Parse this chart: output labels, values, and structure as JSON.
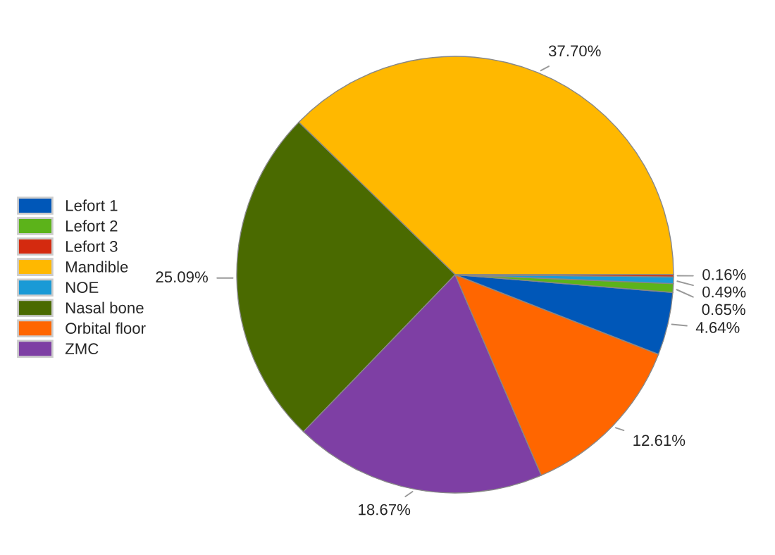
{
  "chart_data": {
    "type": "pie",
    "categories": [
      "Mandible",
      "Nasal bone",
      "ZMC",
      "Orbital floor",
      "Lefort 1",
      "Lefort 2",
      "NOE",
      "Lefort 3"
    ],
    "values": [
      37.7,
      25.09,
      18.67,
      12.61,
      4.64,
      0.65,
      0.49,
      0.16
    ],
    "colors": [
      "#ffb800",
      "#4a6a00",
      "#7e3fa4",
      "#ff6600",
      "#0057b8",
      "#5cb31a",
      "#1a9ad6",
      "#d42a0f"
    ],
    "value_labels": [
      "37.70%",
      "25.09%",
      "18.67%",
      "12.61%",
      "4.64%",
      "0.65%",
      "0.49%",
      "0.16%"
    ],
    "legend": "left"
  }
}
